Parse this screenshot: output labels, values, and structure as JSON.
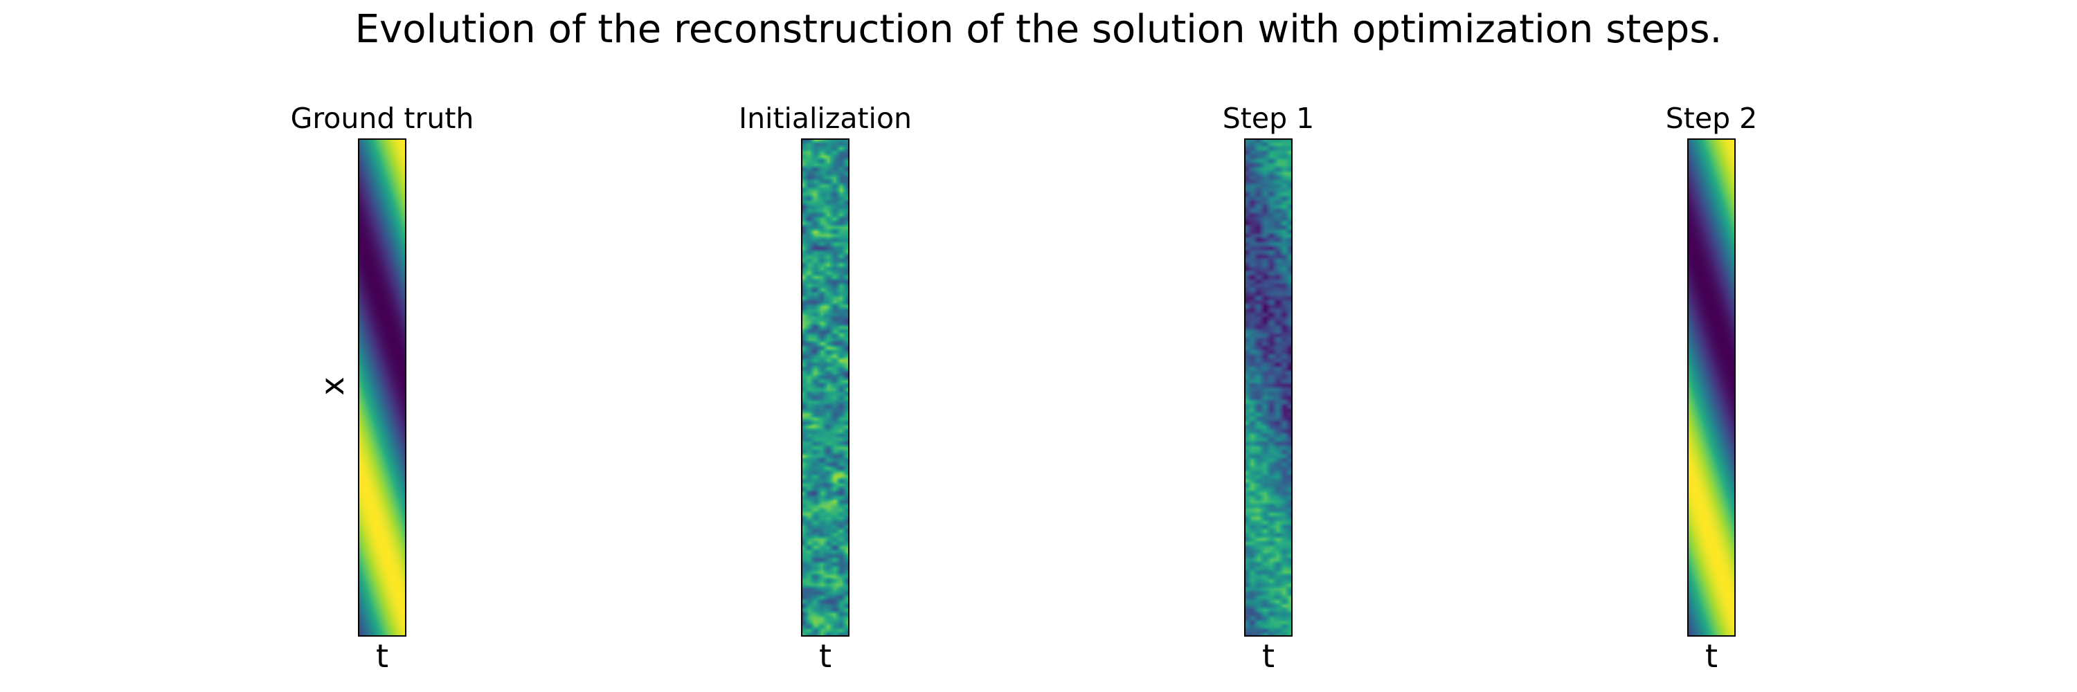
{
  "figure": {
    "title": "Evolution of the reconstruction of the solution with optimization steps."
  },
  "colormap": "viridis",
  "chart_data": [
    {
      "type": "heatmap",
      "title": "Ground truth",
      "xlabel": "t",
      "ylabel": "x",
      "pattern": "smooth-traveling-wave"
    },
    {
      "type": "heatmap",
      "title": "Initialization",
      "xlabel": "t",
      "ylabel": "",
      "pattern": "random-noise"
    },
    {
      "type": "heatmap",
      "title": "Step 1",
      "xlabel": "t",
      "ylabel": "",
      "pattern": "noisy-traveling-wave"
    },
    {
      "type": "heatmap",
      "title": "Step 2",
      "xlabel": "t",
      "ylabel": "",
      "pattern": "smooth-traveling-wave"
    }
  ]
}
